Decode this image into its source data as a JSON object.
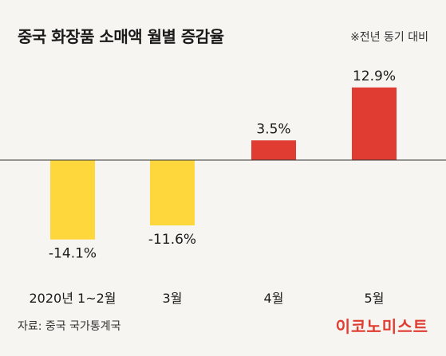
{
  "title": "중국 화장품 소매액 월별 증감율",
  "unit_note": "※전년 동기 대비",
  "source": "자료: 중국 국가통계국",
  "brand": "이코노미스트",
  "colors": {
    "negative": "#fed73c",
    "positive": "#e03c31",
    "baseline": "#333333",
    "background": "#f6f5f1"
  },
  "chart_data": {
    "type": "bar",
    "categories": [
      "2020년 1~2월",
      "3월",
      "4월",
      "5월"
    ],
    "values": [
      -14.1,
      -11.6,
      3.5,
      12.9
    ],
    "value_labels": [
      "-14.1%",
      "-11.6%",
      "3.5%",
      "12.9%"
    ],
    "title": "중국 화장품 소매액 월별 증감율",
    "xlabel": "",
    "ylabel": "",
    "grid": false,
    "legend": "none"
  }
}
